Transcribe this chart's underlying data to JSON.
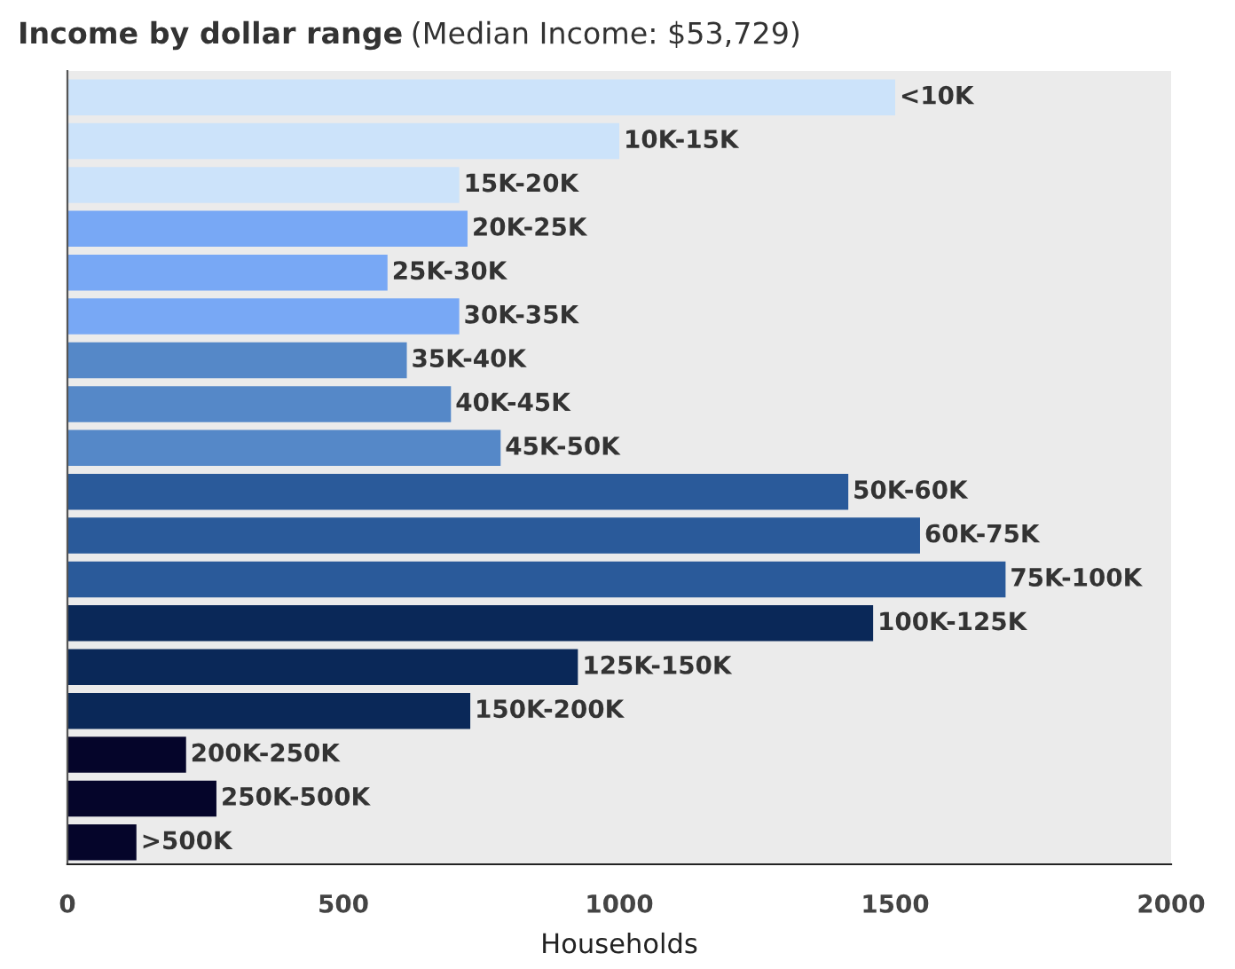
{
  "chart_data": {
    "type": "bar",
    "orientation": "horizontal",
    "title": "Income by dollar range",
    "subtitle": "(Median Income: $53,729)",
    "xlabel": "Households",
    "categories": [
      "<10K",
      "10K-15K",
      "15K-20K",
      "20K-25K",
      "25K-30K",
      "30K-35K",
      "35K-40K",
      "40K-45K",
      "45K-50K",
      "50K-60K",
      "60K-75K",
      "75K-100K",
      "100K-125K",
      "125K-150K",
      "150K-200K",
      "200K-250K",
      "250K-500K",
      ">500K"
    ],
    "values": [
      1500,
      1000,
      710,
      725,
      580,
      710,
      615,
      695,
      785,
      1415,
      1545,
      1700,
      1460,
      925,
      730,
      215,
      270,
      125
    ],
    "colors": [
      "#cce3fa",
      "#cce3fa",
      "#cce3fa",
      "#78a8f5",
      "#78a8f5",
      "#78a8f5",
      "#5588c8",
      "#5588c8",
      "#5588c8",
      "#2a5a9a",
      "#2a5a9a",
      "#2a5a9a",
      "#0a2858",
      "#0a2858",
      "#0a2858",
      "#05052a",
      "#05052a",
      "#05052a"
    ],
    "xlim": [
      0,
      2000
    ],
    "xticks": [
      0,
      500,
      1000,
      1500,
      2000
    ],
    "grid": false
  }
}
